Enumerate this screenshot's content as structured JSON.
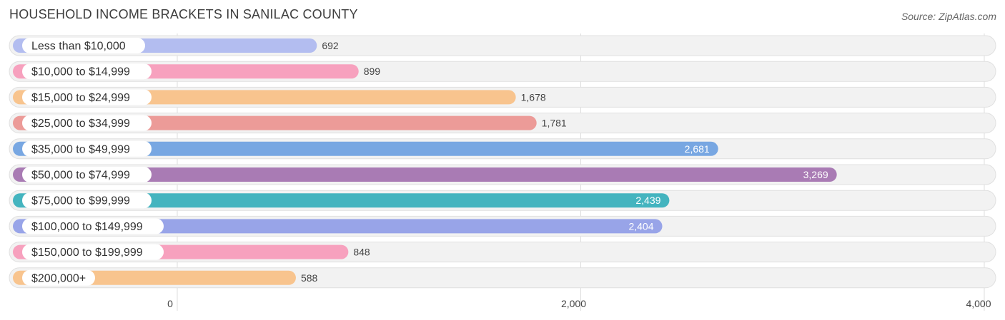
{
  "chart_data": {
    "type": "bar",
    "orientation": "horizontal",
    "title": "HOUSEHOLD INCOME BRACKETS IN SANILAC COUNTY",
    "source": "Source: ZipAtlas.com",
    "categories": [
      "Less than $10,000",
      "$10,000 to $14,999",
      "$15,000 to $24,999",
      "$25,000 to $34,999",
      "$35,000 to $49,999",
      "$50,000 to $74,999",
      "$75,000 to $99,999",
      "$100,000 to $149,999",
      "$150,000 to $199,999",
      "$200,000+"
    ],
    "values": [
      692,
      899,
      1678,
      1781,
      2681,
      3269,
      2439,
      2404,
      848,
      588
    ],
    "value_labels": [
      "692",
      "899",
      "1,678",
      "1,781",
      "2,681",
      "3,269",
      "2,439",
      "2,404",
      "848",
      "588"
    ],
    "colors": [
      "#b3bdf0",
      "#f7a1be",
      "#f8c48e",
      "#ec9b98",
      "#78a7e2",
      "#a97bb4",
      "#44b4bf",
      "#98a4e8",
      "#f7a1be",
      "#f8c48e"
    ],
    "xlim": [
      0,
      4000
    ],
    "xticks": [
      0,
      2000,
      4000
    ],
    "xtick_labels": [
      "0",
      "2,000",
      "4,000"
    ],
    "grid": true
  }
}
